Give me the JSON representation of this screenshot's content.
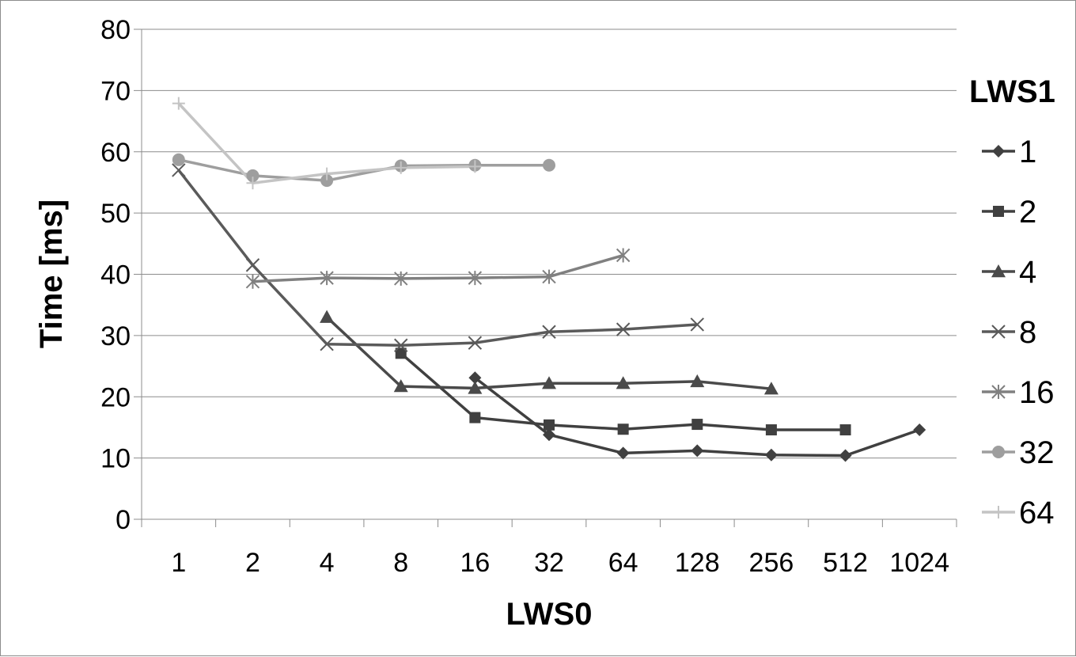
{
  "chart_data": {
    "type": "line",
    "xlabel": "LWS0",
    "ylabel": "Time [ms]",
    "legend_title": "LWS1",
    "legend_position": "right",
    "grid": true,
    "ylim": [
      0,
      80
    ],
    "yticks": [
      "0",
      "10",
      "20",
      "30",
      "40",
      "50",
      "60",
      "70",
      "80"
    ],
    "categories": [
      "1",
      "2",
      "4",
      "8",
      "16",
      "32",
      "64",
      "128",
      "256",
      "512",
      "1024"
    ],
    "series": [
      {
        "name": "1",
        "color": "#404040",
        "marker": "diamond",
        "values": [
          null,
          null,
          null,
          null,
          23.1,
          13.8,
          10.8,
          11.2,
          10.5,
          10.4,
          14.6
        ]
      },
      {
        "name": "2",
        "color": "#404040",
        "marker": "square",
        "values": [
          null,
          null,
          null,
          27.1,
          16.6,
          15.4,
          14.7,
          15.5,
          14.6,
          14.6,
          null
        ]
      },
      {
        "name": "4",
        "color": "#4a4a4a",
        "marker": "triangle",
        "values": [
          null,
          null,
          33.0,
          21.7,
          21.4,
          22.2,
          22.2,
          22.5,
          21.3,
          null,
          null
        ]
      },
      {
        "name": "8",
        "color": "#5a5a5a",
        "marker": "x",
        "values": [
          57.0,
          41.5,
          28.6,
          28.4,
          28.8,
          30.6,
          31.0,
          31.8,
          null,
          null,
          null
        ]
      },
      {
        "name": "16",
        "color": "#808080",
        "marker": "asterisk",
        "values": [
          null,
          38.8,
          39.4,
          39.3,
          39.4,
          39.6,
          43.1,
          null,
          null,
          null,
          null
        ]
      },
      {
        "name": "32",
        "color": "#9e9e9e",
        "marker": "circle",
        "values": [
          58.7,
          56.1,
          55.3,
          57.7,
          57.8,
          57.8,
          null,
          null,
          null,
          null,
          null
        ]
      },
      {
        "name": "64",
        "color": "#c4c4c4",
        "marker": "plus",
        "values": [
          67.9,
          54.9,
          56.4,
          57.4,
          57.6,
          null,
          null,
          null,
          null,
          null,
          null
        ]
      }
    ]
  }
}
